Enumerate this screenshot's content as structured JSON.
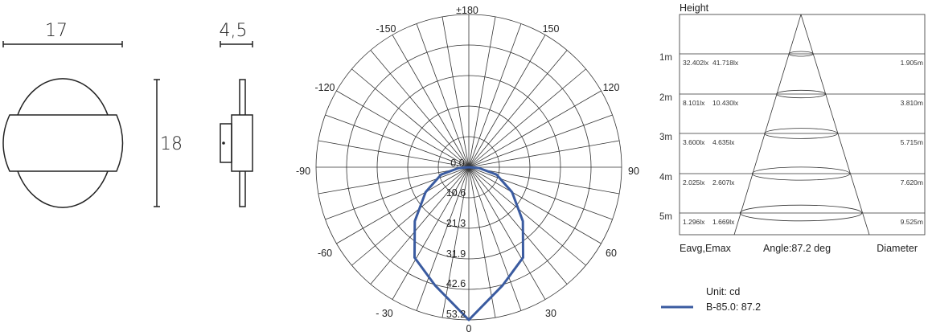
{
  "dimensions": {
    "width": "17",
    "height": "18",
    "depth": "4,5"
  },
  "chart_data": {
    "type": "line",
    "projection": "polar",
    "angle_labels": [
      "±180",
      "150",
      "120",
      "90",
      "60",
      "30",
      "0",
      "- 30",
      "-60",
      "-90",
      "-120",
      "-150"
    ],
    "radial_tick_labels": [
      "0.0",
      "10.6",
      "21.3",
      "31.9",
      "42.6",
      "53.2"
    ],
    "rlim": [
      0,
      53.2
    ],
    "grid": true,
    "series": [
      {
        "name": "B-85.0: 87.2",
        "color": "#3a5ba0",
        "angles": [
          -90,
          -85,
          -75,
          -60,
          -45,
          -31,
          -16,
          0,
          16,
          31,
          45,
          60,
          75,
          85,
          90
        ],
        "values": [
          0,
          3.6,
          10,
          17.4,
          26.6,
          36.7,
          42.8,
          53.2,
          42.8,
          36.7,
          26.6,
          17.4,
          10,
          3.6,
          0
        ]
      }
    ],
    "legend": {
      "unit": "Unit: cd",
      "entry": "B-85.0: 87.2",
      "position": "bottom-right"
    }
  },
  "illuminance": {
    "title": "Height",
    "rows": [
      {
        "height": "1m",
        "eavg": "32.402lx",
        "emax": "41.718lx",
        "diameter": "1.905m"
      },
      {
        "height": "2m",
        "eavg": "8.101lx",
        "emax": "10.430lx",
        "diameter": "3.810m"
      },
      {
        "height": "3m",
        "eavg": "3.600lx",
        "emax": "4.635lx",
        "diameter": "5.715m"
      },
      {
        "height": "4m",
        "eavg": "2.025lx",
        "emax": "2.607lx",
        "diameter": "7.620m"
      },
      {
        "height": "5m",
        "eavg": "1.296lx",
        "emax": "1.669lx",
        "diameter": "9.525m"
      }
    ],
    "footer": {
      "left": "Eavg,Emax",
      "center": "Angle:87.2 deg",
      "right": "Diameter"
    }
  }
}
